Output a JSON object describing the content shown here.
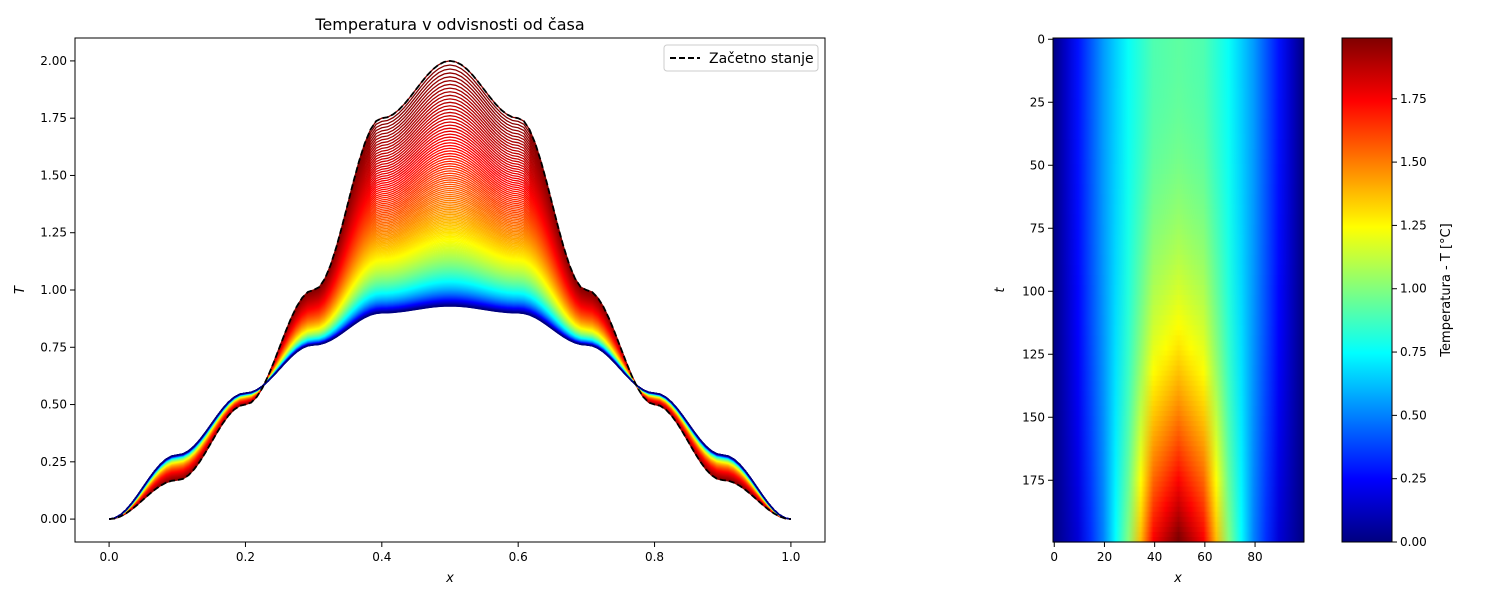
{
  "colors": {
    "background": "#ffffff",
    "axes": "#000000",
    "initial_line": "#000000",
    "colormap": "jet"
  },
  "chart_data": [
    {
      "type": "line",
      "title": "Temperatura v odvisnosti od časa",
      "xlabel": "x",
      "ylabel": "T",
      "xlim": [
        -0.05,
        1.05
      ],
      "ylim": [
        -0.1,
        2.1
      ],
      "xticks": [
        "0.0",
        "0.2",
        "0.4",
        "0.6",
        "0.8",
        "1.0"
      ],
      "yticks": [
        "0.00",
        "0.25",
        "0.50",
        "0.75",
        "1.00",
        "1.25",
        "1.50",
        "1.75",
        "2.00"
      ],
      "grid": false,
      "legend": {
        "placement": "top-right",
        "entries": [
          "Začetno stanje"
        ]
      },
      "initial_curve": {
        "name": "Začetno stanje",
        "style": "dashed",
        "x": [
          0.0,
          0.1,
          0.2,
          0.3,
          0.4,
          0.5,
          0.6,
          0.7,
          0.8,
          0.9,
          1.0
        ],
        "y": [
          0.0,
          0.17,
          0.5,
          1.0,
          1.75,
          2.0,
          1.75,
          1.0,
          0.5,
          0.17,
          0.0
        ]
      },
      "time_curves": {
        "count": 200,
        "colormap": "jet",
        "first_color": "#7f0000",
        "last_color": "#00007f",
        "final_peak": 0.93,
        "x": [
          0.0,
          0.1,
          0.2,
          0.3,
          0.4,
          0.5,
          0.6,
          0.7,
          0.8,
          0.9,
          1.0
        ],
        "y_final": [
          0.0,
          0.28,
          0.55,
          0.76,
          0.9,
          0.93,
          0.9,
          0.76,
          0.55,
          0.28,
          0.0
        ]
      }
    },
    {
      "type": "heatmap",
      "xlabel": "x",
      "ylabel": "t",
      "xlim": [
        0,
        99
      ],
      "ylim": [
        199,
        0
      ],
      "xticks": [
        "0",
        "20",
        "40",
        "60",
        "80"
      ],
      "yticks": [
        "0",
        "25",
        "50",
        "75",
        "100",
        "125",
        "150",
        "175"
      ],
      "colormap": "jet",
      "colorbar": {
        "label": "Temperatura - T [°C]",
        "range": [
          0.0,
          1.99
        ],
        "ticks": [
          "0.00",
          "0.25",
          "0.50",
          "0.75",
          "1.00",
          "1.25",
          "1.50",
          "1.75"
        ]
      },
      "rows_top": {
        "t": 0,
        "center_value": 0.93
      },
      "rows_bottom": {
        "t": 199,
        "center_value": 2.0
      }
    }
  ]
}
